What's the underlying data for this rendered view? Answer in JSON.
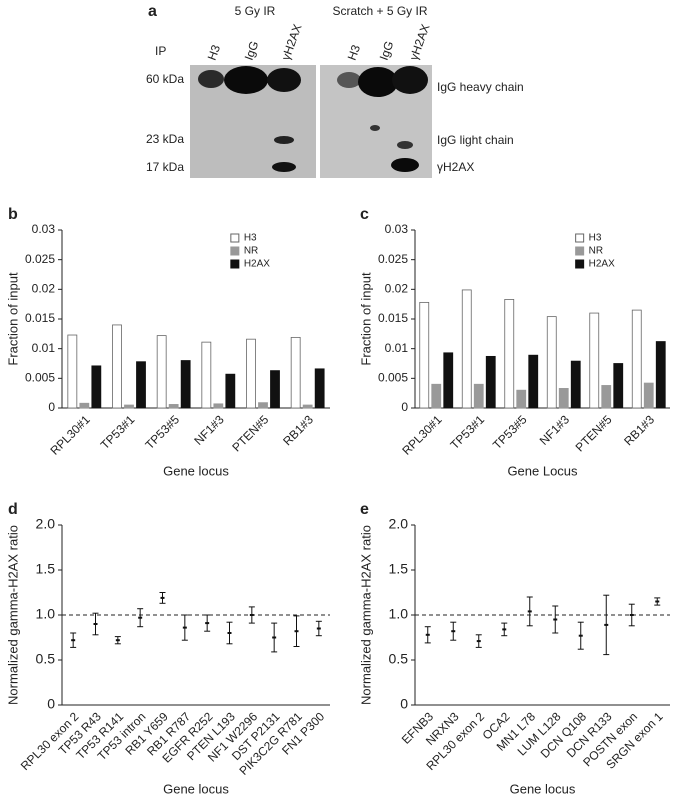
{
  "blot": {
    "panel_label": "a",
    "conditions": [
      "5 Gy IR",
      "Scratch + 5 Gy IR"
    ],
    "ip_label": "IP",
    "lanes": [
      [
        "H3",
        "IgG",
        "γH2AX"
      ],
      [
        "H3",
        "IgG",
        "γH2AX"
      ]
    ],
    "markers": [
      "60 kDa",
      "23 kDa",
      "17 kDa"
    ],
    "bands": [
      "IgG heavy chain",
      "IgG light chain",
      "γH2AX"
    ]
  },
  "chart_data": [
    {
      "type": "bar",
      "panel_label": "b",
      "y_label": "Fraction of input",
      "x_label": "Gene locus",
      "categories": [
        "RPL30#1",
        "TP53#1",
        "TP53#5",
        "NF1#3",
        "PTEN#5",
        "RB1#3"
      ],
      "series": [
        {
          "name": "H3",
          "color": "#ffffff",
          "values": [
            0.0123,
            0.014,
            0.0122,
            0.0111,
            0.0116,
            0.0119
          ]
        },
        {
          "name": "NR",
          "color": "#999999",
          "values": [
            0.0008,
            0.0005,
            0.0006,
            0.0007,
            0.0009,
            0.0005
          ]
        },
        {
          "name": "H2AX",
          "color": "#111111",
          "values": [
            0.0071,
            0.0078,
            0.008,
            0.0057,
            0.0063,
            0.0066
          ]
        }
      ],
      "ylim": [
        0,
        0.03
      ],
      "yticks": [
        0,
        0.005,
        0.01,
        0.015,
        0.02,
        0.025,
        0.03
      ],
      "legend": "top-right"
    },
    {
      "type": "bar",
      "panel_label": "c",
      "y_label": "Fraction of input",
      "x_label": "Gene Locus",
      "categories": [
        "RPL30#1",
        "TP53#1",
        "TP53#5",
        "NF1#3",
        "PTEN#5",
        "RB1#3"
      ],
      "series": [
        {
          "name": "H3",
          "color": "#ffffff",
          "values": [
            0.0178,
            0.0199,
            0.0183,
            0.0154,
            0.016,
            0.0165
          ]
        },
        {
          "name": "NR",
          "color": "#999999",
          "values": [
            0.004,
            0.004,
            0.003,
            0.0033,
            0.0038,
            0.0042
          ]
        },
        {
          "name": "H2AX",
          "color": "#111111",
          "values": [
            0.0093,
            0.0087,
            0.0089,
            0.0079,
            0.0075,
            0.0112
          ]
        }
      ],
      "ylim": [
        0,
        0.03
      ],
      "yticks": [
        0,
        0.005,
        0.01,
        0.015,
        0.02,
        0.025,
        0.03
      ],
      "legend": "top-right"
    },
    {
      "type": "errorbar",
      "panel_label": "d",
      "y_label": "Normalized gamma-H2AX ratio",
      "x_label": "Gene locus",
      "categories": [
        "RPL30 exon 2",
        "TP53 R43",
        "TP53 R141",
        "TP53 intron",
        "RB1 Y659",
        "RB1 R787",
        "EGFR R252",
        "PTEN L193",
        "NF1 W2296",
        "DST P2131",
        "PIK3C2G R781",
        "FN1 P300"
      ],
      "values": [
        0.72,
        0.9,
        0.72,
        0.97,
        1.19,
        0.86,
        0.91,
        0.8,
        1.0,
        0.75,
        0.82,
        0.85
      ],
      "errors": [
        0.08,
        0.12,
        0.04,
        0.1,
        0.06,
        0.14,
        0.09,
        0.12,
        0.09,
        0.16,
        0.17,
        0.08
      ],
      "color": "#111111",
      "reference_line": 1,
      "ylim": [
        0,
        2
      ],
      "yticks": [
        0,
        0.5,
        {
          "value": 1,
          "label": "1.0"
        },
        1.5,
        {
          "value": 2,
          "label": "2.0"
        }
      ]
    },
    {
      "type": "errorbar",
      "panel_label": "e",
      "y_label": "Normalized gamma-H2AX ratio",
      "x_label": "Gene locus",
      "categories": [
        "EFNB3",
        "NRXN3",
        "RPL30 exon 2",
        "OCA2",
        "MN1 L78",
        "LUM L128",
        "DCN Q108",
        "DCN R133",
        "POSTN exon",
        "SRGN exon 1"
      ],
      "values": [
        0.78,
        0.82,
        0.71,
        0.84,
        1.04,
        0.95,
        0.77,
        0.89,
        1.0,
        1.15
      ],
      "errors": [
        0.09,
        0.1,
        0.07,
        0.07,
        0.16,
        0.15,
        0.15,
        0.33,
        0.12,
        0.04
      ],
      "color": "#111111",
      "reference_line": 1,
      "ylim": [
        0,
        2
      ],
      "yticks": [
        0,
        0.5,
        {
          "value": 1,
          "label": "1.0"
        },
        1.5,
        {
          "value": 2,
          "label": "2.0"
        }
      ]
    }
  ]
}
